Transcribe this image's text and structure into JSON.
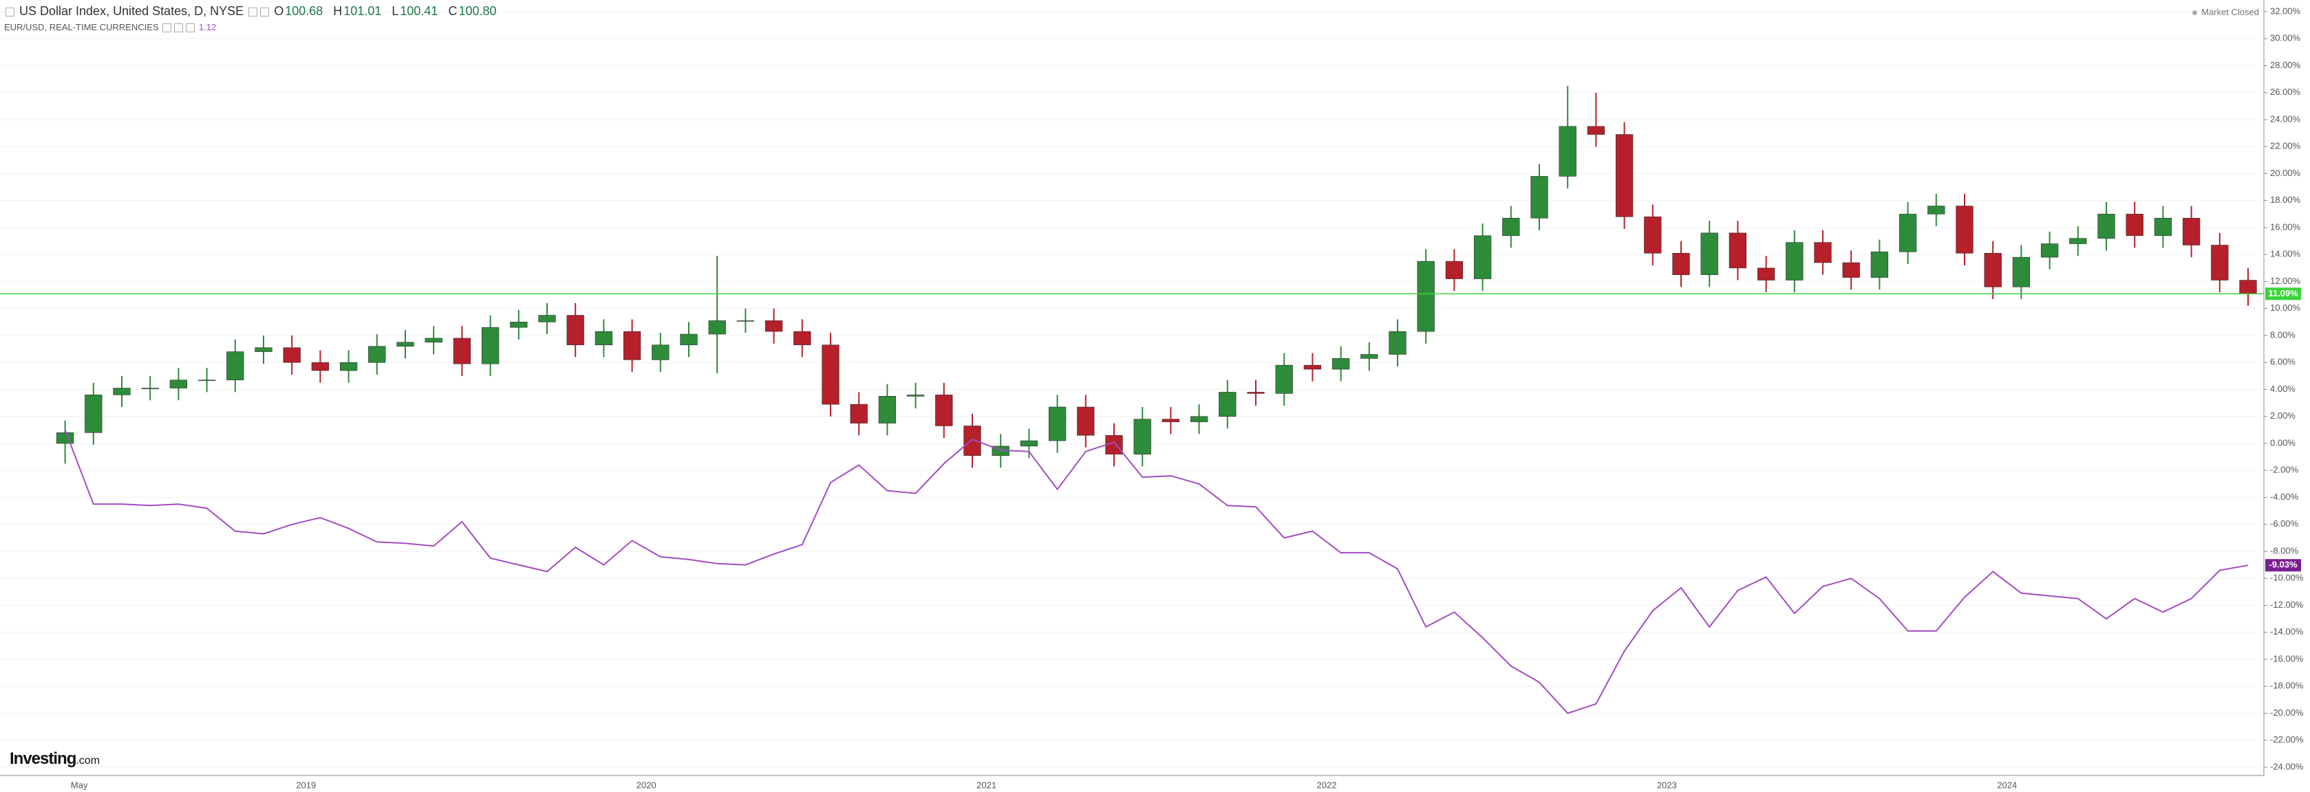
{
  "chart_data": {
    "type": "candlestick",
    "title": "US Dollar Index, United States, D, NYSE",
    "header_quotes": [
      {
        "label": "O",
        "value": "100.68"
      },
      {
        "label": "H",
        "value": "101.01"
      },
      {
        "label": "L",
        "value": "100.41"
      },
      {
        "label": "C",
        "value": "100.80"
      }
    ],
    "status": "Market Closed",
    "logo": {
      "name": "Investing",
      "suffix": ".com"
    },
    "categories": [
      null,
      "May",
      null,
      null,
      null,
      null,
      null,
      null,
      null,
      "2019",
      null,
      null,
      null,
      null,
      null,
      null,
      null,
      null,
      null,
      null,
      null,
      "2020",
      null,
      null,
      null,
      null,
      null,
      null,
      null,
      null,
      null,
      null,
      null,
      "2021",
      null,
      null,
      null,
      null,
      null,
      null,
      null,
      null,
      null,
      null,
      null,
      "2022",
      null,
      null,
      null,
      null,
      null,
      null,
      null,
      null,
      null,
      null,
      null,
      "2023",
      null,
      null,
      null,
      null,
      null,
      null,
      null,
      null,
      null,
      null,
      null,
      "2024",
      null,
      null,
      null,
      null,
      null,
      null,
      null,
      null
    ],
    "series": [
      {
        "name": "US Dollar Index, United States, D, NYSE",
        "type": "candlestick",
        "up_color": "#2e8b3a",
        "down_color": "#b5202a",
        "open": [
          0.0,
          0.8,
          3.6,
          4.1,
          4.1,
          4.7,
          4.7,
          6.8,
          7.1,
          6.0,
          5.4,
          6.0,
          7.2,
          7.5,
          7.8,
          5.9,
          8.6,
          9.0,
          9.5,
          7.3,
          8.3,
          6.2,
          7.3,
          8.1,
          9.1,
          9.1,
          8.3,
          7.3,
          2.9,
          1.5,
          3.5,
          3.6,
          1.3,
          -0.9,
          -0.2,
          0.2,
          2.7,
          0.6,
          -0.8,
          1.8,
          1.6,
          2.0,
          3.8,
          3.7,
          5.8,
          5.5,
          6.3,
          6.6,
          8.3,
          13.5,
          12.2,
          15.4,
          16.7,
          19.8,
          23.5,
          22.9,
          16.8,
          14.1,
          12.5,
          15.6,
          13.0,
          12.1,
          14.9,
          13.4,
          12.3,
          14.2,
          17.0,
          17.6,
          14.1,
          11.6,
          13.8,
          14.8,
          15.2,
          17.0,
          15.4,
          16.7,
          14.7,
          12.1
        ],
        "high": [
          1.7,
          4.5,
          5.0,
          5.0,
          5.6,
          5.6,
          7.7,
          8.0,
          8.0,
          6.9,
          6.9,
          8.1,
          8.4,
          8.7,
          8.7,
          9.5,
          9.9,
          10.4,
          10.4,
          9.2,
          9.2,
          8.2,
          9.0,
          13.9,
          10.0,
          10.0,
          9.2,
          8.2,
          3.8,
          4.4,
          4.5,
          4.5,
          2.2,
          0.7,
          1.1,
          3.6,
          3.6,
          1.5,
          2.7,
          2.7,
          2.9,
          4.7,
          4.7,
          6.7,
          6.7,
          7.2,
          7.5,
          9.2,
          14.4,
          14.4,
          16.3,
          17.6,
          20.7,
          26.5,
          26.0,
          23.8,
          17.7,
          15.0,
          16.5,
          16.5,
          13.9,
          15.8,
          15.8,
          14.3,
          15.1,
          17.9,
          18.5,
          18.5,
          15.0,
          14.7,
          15.7,
          16.1,
          17.9,
          17.9,
          17.6,
          17.6,
          15.6,
          13.0
        ],
        "low": [
          -1.5,
          -0.1,
          2.7,
          3.2,
          3.2,
          3.8,
          3.8,
          5.9,
          5.1,
          4.5,
          4.5,
          5.1,
          6.3,
          6.6,
          5.0,
          5.0,
          7.7,
          8.1,
          6.4,
          6.4,
          5.3,
          5.3,
          6.4,
          5.2,
          8.2,
          7.4,
          6.4,
          2.0,
          0.6,
          0.6,
          2.6,
          0.4,
          -1.8,
          -1.8,
          -1.1,
          -0.7,
          -0.3,
          -1.7,
          -1.7,
          0.7,
          0.7,
          1.1,
          2.8,
          2.8,
          4.6,
          4.6,
          5.4,
          5.7,
          7.4,
          11.3,
          11.3,
          14.5,
          15.8,
          18.9,
          22.0,
          15.9,
          13.2,
          11.6,
          11.6,
          12.1,
          11.2,
          11.2,
          12.5,
          11.4,
          11.4,
          13.3,
          16.1,
          13.2,
          10.7,
          10.7,
          12.9,
          13.9,
          14.3,
          14.5,
          14.5,
          13.8,
          11.2,
          10.2
        ],
        "close": [
          0.8,
          3.6,
          4.1,
          4.1,
          4.7,
          4.7,
          6.8,
          7.1,
          6.0,
          5.4,
          6.0,
          7.2,
          7.5,
          7.8,
          5.9,
          8.6,
          9.0,
          9.5,
          7.3,
          8.3,
          6.2,
          7.3,
          8.1,
          9.1,
          9.1,
          8.3,
          7.3,
          2.9,
          1.5,
          3.5,
          3.6,
          1.3,
          -0.9,
          -0.2,
          0.2,
          2.7,
          0.6,
          -0.8,
          1.8,
          1.6,
          2.0,
          3.8,
          3.7,
          5.8,
          5.5,
          6.3,
          6.6,
          8.3,
          13.5,
          12.2,
          15.4,
          16.7,
          19.8,
          23.5,
          22.9,
          16.8,
          14.1,
          12.5,
          15.6,
          13.0,
          12.1,
          14.9,
          13.4,
          12.3,
          14.2,
          17.0,
          17.6,
          14.1,
          11.6,
          13.8,
          14.8,
          15.2,
          17.0,
          15.4,
          16.7,
          14.7,
          12.1,
          11.09
        ],
        "last_value_label": "11.09%",
        "last_color": "#3ad43a"
      },
      {
        "name": "EUR/USD, REAL-TIME CURRENCIES",
        "type": "line",
        "color": "#a24cc2",
        "price": "1.12",
        "values": [
          1.0,
          -4.5,
          -4.5,
          -4.6,
          -4.5,
          -4.8,
          -6.5,
          -6.7,
          -6.0,
          -5.5,
          -6.3,
          -7.3,
          -7.4,
          -7.6,
          -5.8,
          -8.5,
          -9.0,
          -9.5,
          -7.7,
          -9.0,
          -7.2,
          -8.4,
          -8.6,
          -8.9,
          -9.0,
          -8.2,
          -7.5,
          -2.9,
          -1.6,
          -3.5,
          -3.7,
          -1.5,
          0.3,
          -0.5,
          -0.6,
          -3.4,
          -0.6,
          0.1,
          -2.5,
          -2.4,
          -3.0,
          -4.6,
          -4.7,
          -7.0,
          -6.5,
          -8.1,
          -8.1,
          -9.3,
          -13.6,
          -12.5,
          -14.4,
          -16.5,
          -17.7,
          -20.0,
          -19.3,
          -15.4,
          -12.4,
          -10.7,
          -13.6,
          -10.9,
          -9.9,
          -12.6,
          -10.6,
          -10.0,
          -11.5,
          -13.9,
          -13.9,
          -11.4,
          -9.5,
          -11.1,
          -11.3,
          -11.5,
          -13.0,
          -11.5,
          -12.5,
          -11.5,
          -9.4,
          -9.03
        ],
        "last_value_label": "-9.03%",
        "last_color": "#7b1e8f"
      }
    ],
    "ylim": [
      -24,
      32
    ],
    "yticks": [
      {
        "value": 32,
        "label": "32.00%"
      },
      {
        "value": 30,
        "label": "30.00%"
      },
      {
        "value": 28,
        "label": "28.00%"
      },
      {
        "value": 26,
        "label": "26.00%"
      },
      {
        "value": 24,
        "label": "24.00%"
      },
      {
        "value": 22,
        "label": "22.00%"
      },
      {
        "value": 20,
        "label": "20.00%"
      },
      {
        "value": 18,
        "label": "18.00%"
      },
      {
        "value": 16,
        "label": "16.00%"
      },
      {
        "value": 14,
        "label": "14.00%"
      },
      {
        "value": 12,
        "label": "12.00%"
      },
      {
        "value": 10,
        "label": "10.00%"
      },
      {
        "value": 8,
        "label": "8.00%"
      },
      {
        "value": 6,
        "label": "6.00%"
      },
      {
        "value": 4,
        "label": "4.00%"
      },
      {
        "value": 2,
        "label": "2.00%"
      },
      {
        "value": 0,
        "label": "0.00%"
      },
      {
        "value": -2,
        "label": "-2.00%"
      },
      {
        "value": -4,
        "label": "-4.00%"
      },
      {
        "value": -6,
        "label": "-6.00%"
      },
      {
        "value": -8,
        "label": "-8.00%"
      },
      {
        "value": -10,
        "label": "-10.00%"
      },
      {
        "value": -12,
        "label": "-12.00%"
      },
      {
        "value": -14,
        "label": "-14.00%"
      },
      {
        "value": -16,
        "label": "-16.00%"
      },
      {
        "value": -18,
        "label": "-18.00%"
      },
      {
        "value": -20,
        "label": "-20.00%"
      },
      {
        "value": -22,
        "label": "-22.00%"
      },
      {
        "value": -24,
        "label": "-24.00%"
      }
    ],
    "grid": true
  }
}
